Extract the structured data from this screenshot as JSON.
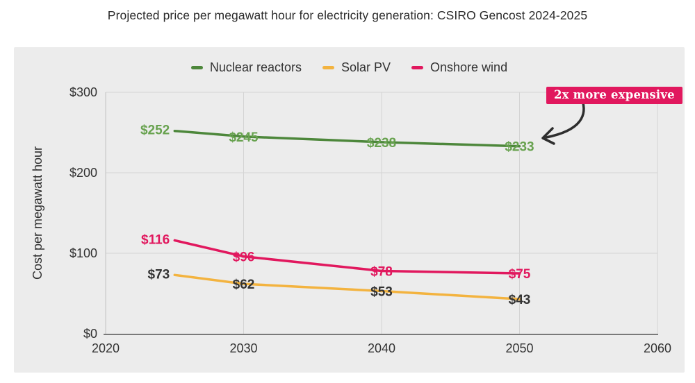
{
  "page": {
    "title": "Projected price per megawatt hour for electricity generation: CSIRO Gencost 2024-2025"
  },
  "colors": {
    "card_background": "#ececec",
    "grid_line": "#d4d4d4",
    "plot_left_border": "#c9c9c9",
    "x_axis_line": "#7a7a7a",
    "tick_text": "#333333",
    "arrow": "#2e2e2e"
  },
  "chart_data": {
    "type": "line",
    "title": "Projected price per megawatt hour for electricity generation: CSIRO Gencost 2024-2025",
    "xlabel": "",
    "ylabel": "Cost per megawatt hour",
    "xlim": [
      2020,
      2060
    ],
    "ylim": [
      0,
      300
    ],
    "grid": true,
    "legend_position": "top-center",
    "x": [
      2025,
      2030,
      2040,
      2050
    ],
    "x_ticks": [
      {
        "value": 2020,
        "label": "2020"
      },
      {
        "value": 2030,
        "label": "2030"
      },
      {
        "value": 2040,
        "label": "2040"
      },
      {
        "value": 2050,
        "label": "2050"
      },
      {
        "value": 2060,
        "label": "2060"
      }
    ],
    "y_ticks": [
      {
        "value": 0,
        "label": "$0"
      },
      {
        "value": 100,
        "label": "$100"
      },
      {
        "value": 200,
        "label": "$200"
      },
      {
        "value": 300,
        "label": "$300"
      }
    ],
    "series": [
      {
        "name": "Nuclear reactors",
        "color": "#4d873b",
        "label_color": "#68a24f",
        "values": [
          252,
          245,
          238,
          233
        ],
        "point_labels": [
          "$252",
          "$245",
          "$238",
          "$233"
        ]
      },
      {
        "name": "Solar PV",
        "color": "#f3b33f",
        "label_color": "#333333",
        "values": [
          73,
          62,
          53,
          43
        ],
        "point_labels": [
          "$73",
          "$62",
          "$53",
          "$43"
        ]
      },
      {
        "name": "Onshore wind",
        "color": "#e1185e",
        "label_color": "#e1185e",
        "values": [
          116,
          96,
          78,
          75
        ],
        "point_labels": [
          "$116",
          "$96",
          "$78",
          "$75"
        ]
      }
    ],
    "annotation": {
      "text": "2x more expensive",
      "bg": "#e1185e",
      "text_color": "#ffffff"
    }
  }
}
